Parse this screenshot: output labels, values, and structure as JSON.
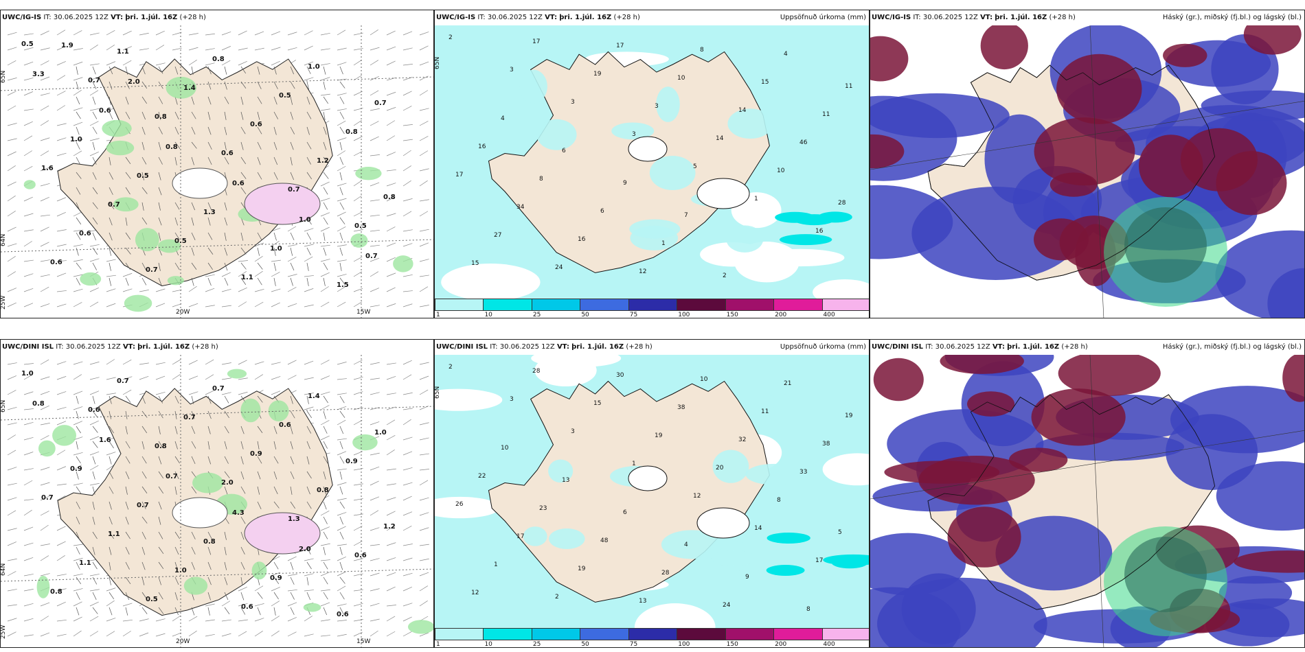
{
  "rows": [
    {
      "model": "UWC/IG-IS",
      "panels": [
        {
          "id": "wind",
          "model": "UWC/IG-IS",
          "it_label": "IT:",
          "it": "30.06.2025 12Z",
          "vt_label": "VT:",
          "vt": "þri. 1.júl. 16Z",
          "lead": "(+28 h)",
          "right_title": "",
          "values": [
            "0.5",
            "0.7",
            "0.8",
            "0.6",
            "0.7",
            "0.5",
            "0.6",
            "1.1",
            "1.4",
            "0.6",
            "1.2",
            "0.8",
            "0.6",
            "0.7",
            "0.8",
            "0.5",
            "0.8",
            "1.6",
            "0.7",
            "0.5",
            "1.1",
            "1.0",
            "0.7",
            "1.0",
            "0.5",
            "1.3",
            "1.0",
            "1.5",
            "3.3",
            "0.6",
            "0.8",
            "0.6",
            "1.0",
            "0.7",
            "1.9",
            "2.0"
          ],
          "lon_labels": [
            "20W",
            "15W"
          ],
          "lat_labels": [
            "65N",
            "64N",
            "25W"
          ]
        },
        {
          "id": "precip",
          "model": "UWC/IG-IS",
          "it_label": "IT:",
          "it": "30.06.2025 12Z",
          "vt_label": "VT:",
          "vt": "þri. 1.júl. 16Z",
          "lead": "(+28 h)",
          "right_title": "Uppsöfnuð úrkoma (mm)",
          "values": [
            "2",
            "3",
            "3",
            "3",
            "5",
            "1",
            "16",
            "15",
            "17",
            "19",
            "3",
            "14",
            "10",
            "28",
            "27",
            "24",
            "17",
            "10",
            "14",
            "46",
            "17",
            "34",
            "16",
            "12",
            "8",
            "15",
            "11",
            "16",
            "8",
            "6",
            "1",
            "2",
            "4",
            "11",
            "4",
            "6",
            "9",
            "7"
          ],
          "colorbar": {
            "ticks": [
              "1",
              "10",
              "25",
              "50",
              "75",
              "100",
              "150",
              "200",
              "400"
            ],
            "colors": [
              "#b7f5f5",
              "#00e6e6",
              "#00c8e8",
              "#3d6be0",
              "#2c2ca8",
              "#5c0a3c",
              "#a0106a",
              "#e01c9a",
              "#f7b3ec"
            ]
          },
          "lat_labels": [
            "65N"
          ]
        },
        {
          "id": "clouds",
          "model": "UWC/IG-IS",
          "it_label": "IT:",
          "it": "30.06.2025 12Z",
          "vt_label": "VT:",
          "vt": "þri. 1.júl. 16Z",
          "lead": "(+28 h)",
          "right_title": "Háský (gr.), miðský (fj.bl.) og lágský (bl.)"
        }
      ]
    },
    {
      "model": "UWC/DINI ISL",
      "panels": [
        {
          "id": "wind",
          "model": "UWC/DINI ISL",
          "it_label": "IT:",
          "it": "30.06.2025 12Z",
          "vt_label": "VT:",
          "vt": "þri. 1.júl. 16Z",
          "lead": "(+28 h)",
          "right_title": "",
          "values": [
            "1.0",
            "0.6",
            "0.8",
            "2.0",
            "1.3",
            "0.6",
            "0.8",
            "0.7",
            "0.7",
            "0.9",
            "0.8",
            "1.2",
            "1.1",
            "0.5",
            "0.7",
            "0.6",
            "0.9",
            "0.7",
            "1.1",
            "1.0",
            "0.6",
            "1.4",
            "1.0",
            "0.9",
            "0.7",
            "0.8",
            "0.9",
            "0.6",
            "0.8",
            "1.6",
            "0.7",
            "4.3",
            "2.0"
          ],
          "lon_labels": [
            "20W",
            "15W"
          ],
          "lat_labels": [
            "65N",
            "64N",
            "25W"
          ]
        },
        {
          "id": "precip",
          "model": "UWC/DINI ISL",
          "it_label": "IT:",
          "it": "30.06.2025 12Z",
          "vt_label": "VT:",
          "vt": "þri. 1.júl. 16Z",
          "lead": "(+28 h)",
          "right_title": "Uppsöfnuð úrkoma (mm)",
          "values": [
            "2",
            "3",
            "3",
            "1",
            "12",
            "14",
            "17",
            "12",
            "28",
            "15",
            "19",
            "20",
            "8",
            "5",
            "1",
            "2",
            "30",
            "38",
            "32",
            "33",
            "26",
            "17",
            "19",
            "13",
            "10",
            "11",
            "38",
            "22",
            "23",
            "48",
            "28",
            "24",
            "21",
            "19",
            "10",
            "13",
            "6",
            "4",
            "9",
            "8"
          ],
          "colorbar": {
            "ticks": [
              "1",
              "10",
              "25",
              "50",
              "75",
              "100",
              "150",
              "200",
              "400"
            ],
            "colors": [
              "#b7f5f5",
              "#00e6e6",
              "#00c8e8",
              "#3d6be0",
              "#2c2ca8",
              "#5c0a3c",
              "#a0106a",
              "#e01c9a",
              "#f7b3ec"
            ]
          },
          "lat_labels": [
            "65N"
          ]
        },
        {
          "id": "clouds",
          "model": "UWC/DINI ISL",
          "it_label": "IT:",
          "it": "30.06.2025 12Z",
          "vt_label": "VT:",
          "vt": "þri. 1.júl. 16Z",
          "lead": "(+28 h)",
          "right_title": "Háský (gr.), miðský (fj.bl.) og lágský (bl.)"
        }
      ]
    }
  ],
  "colors": {
    "land": "#f3e6d6",
    "precip_light": "#b7f5f5",
    "precip_mid": "#00e6e6",
    "cloud_high": "#7a1538",
    "cloud_mid": "#3d44c0",
    "cloud_low": "#3ed98a",
    "wind_green": "#9ee6a0"
  }
}
